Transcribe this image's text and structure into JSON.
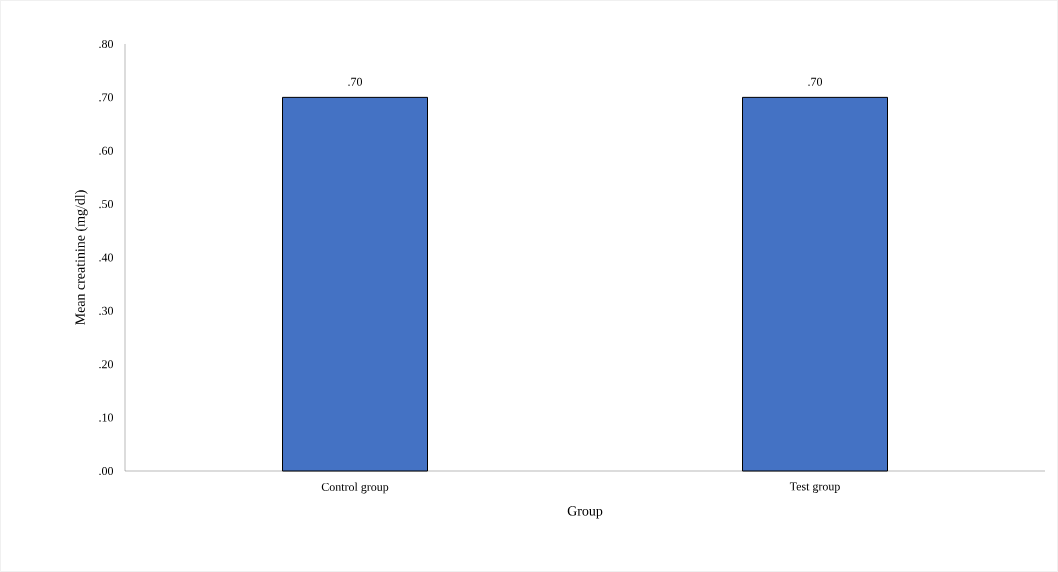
{
  "chart_data": {
    "type": "bar",
    "xlabel": "Group",
    "ylabel": "Mean creatinine (mg/dl)",
    "categories": [
      "Control group",
      "Test group"
    ],
    "values": [
      0.7,
      0.7
    ],
    "value_labels": [
      ".70",
      ".70"
    ],
    "color": "#4472c4",
    "ylim": [
      0,
      0.8
    ],
    "yticks": [
      {
        "value": 0,
        "label": ".00"
      },
      {
        "value": 0.1,
        "label": ".10"
      },
      {
        "value": 0.2,
        "label": ".20"
      },
      {
        "value": 0.3,
        "label": ".30"
      },
      {
        "value": 0.4,
        "label": ".40"
      },
      {
        "value": 0.5,
        "label": ".50"
      },
      {
        "value": 0.6,
        "label": ".60"
      },
      {
        "value": 0.7,
        "label": ".70"
      },
      {
        "value": 0.8,
        "label": ".80"
      }
    ],
    "grid": false
  }
}
